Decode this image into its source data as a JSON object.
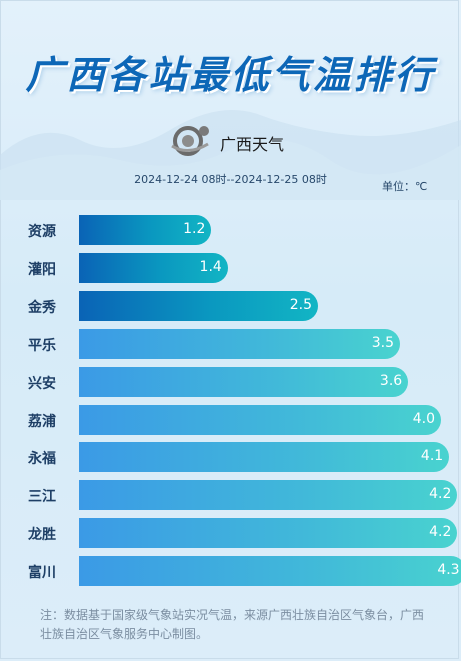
{
  "header": {
    "title": "广西各站最低气温排行",
    "logo_text": "广西天气",
    "period": "2024-12-24 08时--2024-12-25 08时",
    "unit": "单位：℃"
  },
  "chart_data": {
    "type": "bar",
    "orientation": "horizontal",
    "title": "广西各站最低气温排行",
    "categories": [
      "资源",
      "灌阳",
      "金秀",
      "平乐",
      "兴安",
      "荔浦",
      "永福",
      "三江",
      "龙胜",
      "富川"
    ],
    "values": [
      1.2,
      1.4,
      2.5,
      3.5,
      3.6,
      4.0,
      4.1,
      4.2,
      4.2,
      4.3
    ],
    "value_labels": [
      "1.2",
      "1.4",
      "2.5",
      "3.5",
      "3.6",
      "4.0",
      "4.1",
      "4.2",
      "4.2",
      "4.3"
    ],
    "xlabel": "",
    "ylabel": "",
    "grid": false,
    "colors": {
      "low": "#0a63b6",
      "low_end": "#12b5c4",
      "high": "#3b9ae6",
      "high_end": "#49d3cf"
    }
  },
  "footer": {
    "note": "注：数据基于国家级气象站实况气温，来源广西壮族自治区气象台，广西壮族自治区气象服务中心制图。"
  }
}
